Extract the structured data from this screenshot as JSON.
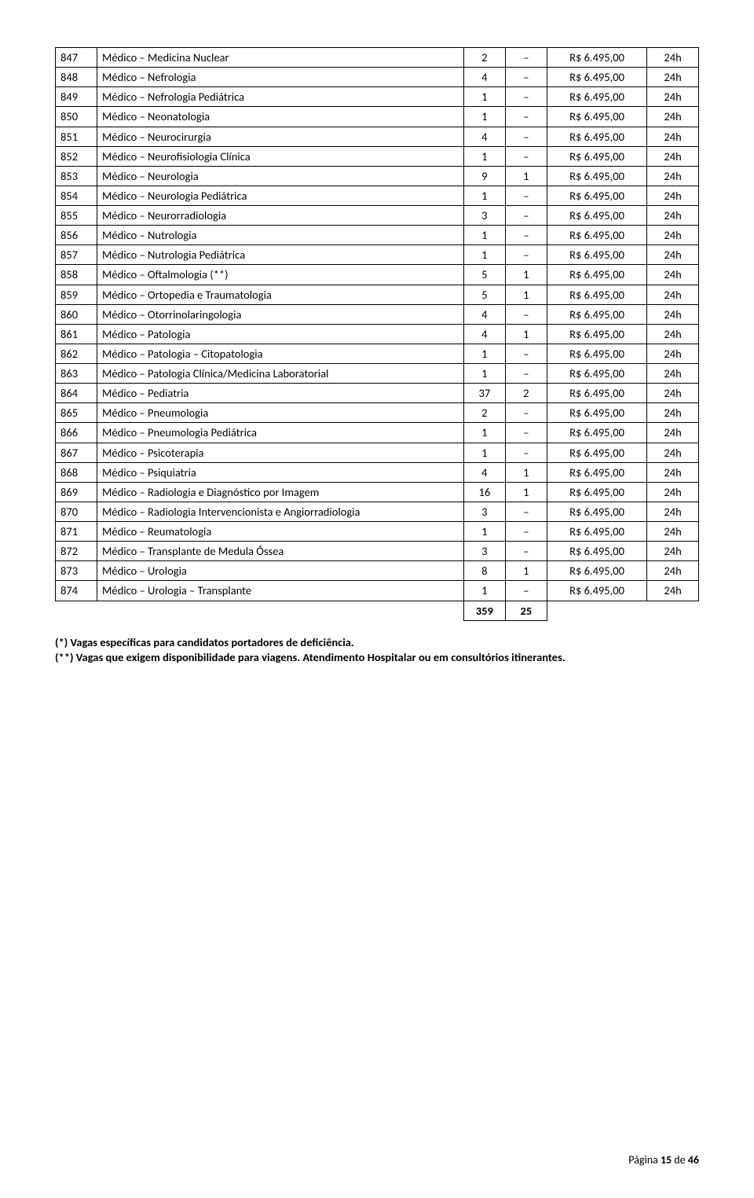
{
  "columns": {
    "widths": {
      "code": 50,
      "desc": 440,
      "q1": 50,
      "q2": 50,
      "val": 120,
      "hrs": 62
    }
  },
  "rows": [
    {
      "code": "847",
      "desc": "Médico – Medicina Nuclear",
      "q1": "2",
      "q2": "–",
      "val": "R$ 6.495,00",
      "hrs": "24h"
    },
    {
      "code": "848",
      "desc": "Médico – Nefrologia",
      "q1": "4",
      "q2": "–",
      "val": "R$ 6.495,00",
      "hrs": "24h"
    },
    {
      "code": "849",
      "desc": "Médico – Nefrologia Pediátrica",
      "q1": "1",
      "q2": "–",
      "val": "R$ 6.495,00",
      "hrs": "24h"
    },
    {
      "code": "850",
      "desc": "Médico – Neonatologia",
      "q1": "1",
      "q2": "–",
      "val": "R$ 6.495,00",
      "hrs": "24h"
    },
    {
      "code": "851",
      "desc": "Médico – Neurocirurgia",
      "q1": "4",
      "q2": "–",
      "val": "R$ 6.495,00",
      "hrs": "24h"
    },
    {
      "code": "852",
      "desc": "Médico – Neurofisiologia Clínica",
      "q1": "1",
      "q2": "–",
      "val": "R$ 6.495,00",
      "hrs": "24h"
    },
    {
      "code": "853",
      "desc": "Médico – Neurologia",
      "q1": "9",
      "q2": "1",
      "val": "R$ 6.495,00",
      "hrs": "24h"
    },
    {
      "code": "854",
      "desc": "Médico – Neurologia Pediátrica",
      "q1": "1",
      "q2": "–",
      "val": "R$ 6.495,00",
      "hrs": "24h"
    },
    {
      "code": "855",
      "desc": "Médico – Neurorradiologia",
      "q1": "3",
      "q2": "–",
      "val": "R$ 6.495,00",
      "hrs": "24h"
    },
    {
      "code": "856",
      "desc": "Médico – Nutrologia",
      "q1": "1",
      "q2": "–",
      "val": "R$ 6.495,00",
      "hrs": "24h"
    },
    {
      "code": "857",
      "desc": "Médico – Nutrologia Pediátrica",
      "q1": "1",
      "q2": "–",
      "val": "R$ 6.495,00",
      "hrs": "24h"
    },
    {
      "code": "858",
      "desc": "Médico – Oftalmologia (**)",
      "q1": "5",
      "q2": "1",
      "val": "R$ 6.495,00",
      "hrs": "24h"
    },
    {
      "code": "859",
      "desc": "Médico – Ortopedia e Traumatologia",
      "q1": "5",
      "q2": "1",
      "val": "R$ 6.495,00",
      "hrs": "24h"
    },
    {
      "code": "860",
      "desc": "Médico – Otorrinolaringologia",
      "q1": "4",
      "q2": "–",
      "val": "R$ 6.495,00",
      "hrs": "24h"
    },
    {
      "code": "861",
      "desc": "Médico – Patologia",
      "q1": "4",
      "q2": "1",
      "val": "R$ 6.495,00",
      "hrs": "24h"
    },
    {
      "code": "862",
      "desc": "Médico – Patologia – Citopatologia",
      "q1": "1",
      "q2": "–",
      "val": "R$ 6.495,00",
      "hrs": "24h"
    },
    {
      "code": "863",
      "desc": "Médico – Patologia Clínica/Medicina Laboratorial",
      "q1": "1",
      "q2": "–",
      "val": "R$ 6.495,00",
      "hrs": "24h"
    },
    {
      "code": "864",
      "desc": "Médico – Pediatria",
      "q1": "37",
      "q2": "2",
      "val": "R$ 6.495,00",
      "hrs": "24h"
    },
    {
      "code": "865",
      "desc": "Médico – Pneumologia",
      "q1": "2",
      "q2": "–",
      "val": "R$ 6.495,00",
      "hrs": "24h"
    },
    {
      "code": "866",
      "desc": "Médico – Pneumologia Pediátrica",
      "q1": "1",
      "q2": "–",
      "val": "R$ 6.495,00",
      "hrs": "24h"
    },
    {
      "code": "867",
      "desc": "Médico – Psicoterapia",
      "q1": "1",
      "q2": "–",
      "val": "R$ 6.495,00",
      "hrs": "24h"
    },
    {
      "code": "868",
      "desc": "Médico – Psiquiatria",
      "q1": "4",
      "q2": "1",
      "val": "R$ 6.495,00",
      "hrs": "24h"
    },
    {
      "code": "869",
      "desc": "Médico – Radiologia e Diagnóstico por Imagem",
      "q1": "16",
      "q2": "1",
      "val": "R$ 6.495,00",
      "hrs": "24h"
    },
    {
      "code": "870",
      "desc": "Médico – Radiologia Intervencionista e Angiorradiologia",
      "q1": "3",
      "q2": "–",
      "val": "R$ 6.495,00",
      "hrs": "24h"
    },
    {
      "code": "871",
      "desc": "Médico – Reumatologia",
      "q1": "1",
      "q2": "–",
      "val": "R$ 6.495,00",
      "hrs": "24h"
    },
    {
      "code": "872",
      "desc": "Médico – Transplante de Medula Óssea",
      "q1": "3",
      "q2": "–",
      "val": "R$ 6.495,00",
      "hrs": "24h"
    },
    {
      "code": "873",
      "desc": "Médico – Urologia",
      "q1": "8",
      "q2": "1",
      "val": "R$ 6.495,00",
      "hrs": "24h"
    },
    {
      "code": "874",
      "desc": "Médico – Urologia – Transplante",
      "q1": "1",
      "q2": "–",
      "val": "R$ 6.495,00",
      "hrs": "24h"
    }
  ],
  "totals": {
    "q1": "359",
    "q2": "25"
  },
  "notes": {
    "line1": "(*) Vagas específicas para candidatos portadores de deficiência.",
    "line2": "(**) Vagas que exigem disponibilidade para viagens. Atendimento Hospitalar ou em consultórios itinerantes."
  },
  "footer": {
    "prefix": "Página ",
    "current": "15",
    "sep": " de ",
    "total": "46"
  }
}
